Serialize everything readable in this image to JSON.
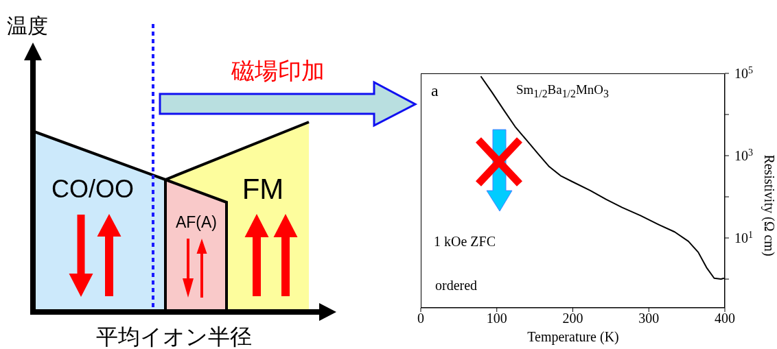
{
  "chart_data": [
    {
      "type": "other",
      "xlabel": "平均イオン半径",
      "ylabel": "温度",
      "annotations": [
        "CO/OO",
        "AF(A)",
        "FM",
        "磁場印加"
      ]
    },
    {
      "type": "line",
      "xlabel": "Temperature (K)",
      "ylabel": "Resistivity (Ω cm)",
      "log": "y",
      "xlim": [
        0,
        400
      ],
      "xticks": [
        0,
        100,
        200,
        300,
        400
      ],
      "ylim": [
        0.2,
        100000
      ],
      "yticks": [
        {
          "value": 100000,
          "label": "10$^{5}$"
        },
        {
          "value": 10000,
          "label": null
        },
        {
          "value": 1000,
          "label": "10$^{3}$"
        },
        {
          "value": 100,
          "label": null
        },
        {
          "value": 10,
          "label": "10$^{1}$"
        },
        {
          "value": 1,
          "label": null
        }
      ],
      "annotations": [
        "a",
        "Sm$_{1/2}$Ba$_{1/2}$MnO$_{3}$",
        "1 kOe ZFC",
        "ordered"
      ],
      "series": [
        {
          "color": "#000000",
          "x": [
            79,
            94,
            109,
            124,
            139,
            154,
            169,
            184,
            199,
            223,
            244,
            265,
            289,
            313,
            334,
            352,
            365,
            376,
            386,
            395,
            399
          ],
          "values": [
            85000,
            34000,
            13000,
            5100,
            2400,
            1130,
            540,
            325,
            235,
            142,
            86,
            55,
            35,
            21,
            14,
            8.3,
            4.5,
            1.9,
            1.05,
            1.0,
            1.05
          ]
        }
      ]
    }
  ]
}
